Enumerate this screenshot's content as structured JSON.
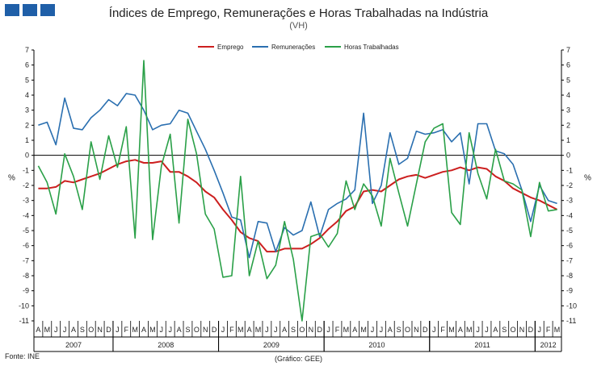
{
  "header": {
    "title": "Índices de Emprego, Remunerações e Horas Trabalhadas na Indústria",
    "subtitle": "(VH)"
  },
  "footer": {
    "source": "Fonte: INE",
    "credit": "(Gráfico: GEE)"
  },
  "colors": {
    "emprego": "#cc1f1f",
    "remuneracoes": "#2a6fb0",
    "horas": "#2aa048",
    "logo": "#1f5fa8"
  },
  "chart_data": {
    "type": "line",
    "title": "Índices de Emprego, Remunerações e Horas Trabalhadas na Indústria",
    "subtitle": "(VH)",
    "ylabel_left": "%",
    "ylabel_right": "%",
    "ylim": [
      -11,
      7
    ],
    "yticks": [
      7,
      6,
      5,
      4,
      3,
      2,
      1,
      0,
      -1,
      -2,
      -3,
      -4,
      -5,
      -6,
      -7,
      -8,
      -9,
      -10,
      -11
    ],
    "grid": false,
    "legend_position": "top-center",
    "x": [
      "A",
      "M",
      "J",
      "J",
      "A",
      "S",
      "O",
      "N",
      "D",
      "J",
      "F",
      "M",
      "A",
      "M",
      "J",
      "J",
      "A",
      "S",
      "O",
      "N",
      "D",
      "J",
      "F",
      "M",
      "A",
      "M",
      "J",
      "J",
      "A",
      "S",
      "O",
      "N",
      "D",
      "J",
      "F",
      "M",
      "A",
      "M",
      "J",
      "J",
      "A",
      "S",
      "O",
      "N",
      "D",
      "J",
      "F",
      "M",
      "A",
      "M",
      "J",
      "J",
      "A",
      "S",
      "O",
      "N",
      "D",
      "J",
      "F",
      "M"
    ],
    "year_groups": [
      {
        "label": "2007",
        "start": 0,
        "count": 9
      },
      {
        "label": "2008",
        "start": 9,
        "count": 12
      },
      {
        "label": "2009",
        "start": 21,
        "count": 12
      },
      {
        "label": "2010",
        "start": 33,
        "count": 12
      },
      {
        "label": "2011",
        "start": 45,
        "count": 12
      },
      {
        "label": "2012",
        "start": 57,
        "count": 3
      }
    ],
    "series": [
      {
        "name": "Emprego",
        "color": "#cc1f1f",
        "values": [
          -2.2,
          -2.2,
          -2.1,
          -1.7,
          -1.8,
          -1.6,
          -1.4,
          -1.2,
          -0.9,
          -0.6,
          -0.4,
          -0.3,
          -0.5,
          -0.5,
          -0.4,
          -1.1,
          -1.1,
          -1.4,
          -1.8,
          -2.4,
          -2.8,
          -3.6,
          -4.3,
          -5.1,
          -5.5,
          -5.7,
          -6.4,
          -6.4,
          -6.2,
          -6.2,
          -6.2,
          -5.9,
          -5.5,
          -4.9,
          -4.4,
          -3.7,
          -3.4,
          -2.4,
          -2.3,
          -2.4,
          -2.0,
          -1.6,
          -1.4,
          -1.3,
          -1.5,
          -1.3,
          -1.1,
          -1.0,
          -0.8,
          -1.0,
          -0.8,
          -0.9,
          -1.4,
          -1.7,
          -2.2,
          -2.5,
          -2.8,
          -3.0,
          -3.3,
          -3.6
        ]
      },
      {
        "name": "Remunerações",
        "color": "#2a6fb0",
        "values": [
          2.0,
          2.2,
          0.7,
          3.8,
          1.8,
          1.7,
          2.5,
          3.0,
          3.7,
          3.3,
          4.1,
          4.0,
          3.0,
          1.7,
          2.0,
          2.1,
          3.0,
          2.8,
          1.6,
          0.4,
          -1.0,
          -2.5,
          -4.1,
          -4.3,
          -6.8,
          -4.4,
          -4.5,
          -6.4,
          -4.8,
          -5.3,
          -5.0,
          -3.1,
          -5.4,
          -3.6,
          -3.2,
          -2.9,
          -2.3,
          2.8,
          -3.2,
          -2.0,
          1.5,
          -0.6,
          -0.2,
          1.6,
          1.4,
          1.5,
          1.7,
          0.9,
          1.5,
          -1.9,
          2.1,
          2.1,
          0.3,
          0.1,
          -0.6,
          -2.3,
          -4.4,
          -2.0,
          -3.0,
          -3.2
        ]
      },
      {
        "name": "Horas Trabalhadas",
        "color": "#2aa048",
        "values": [
          -0.7,
          -1.8,
          -3.9,
          0.1,
          -1.4,
          -3.6,
          0.9,
          -1.6,
          1.3,
          -0.8,
          1.9,
          -5.5,
          6.3,
          -5.6,
          -0.7,
          1.4,
          -4.5,
          2.4,
          0.1,
          -3.9,
          -4.9,
          -8.1,
          -8.0,
          -1.4,
          -8.0,
          -5.7,
          -8.2,
          -7.3,
          -4.4,
          -6.9,
          -11.0,
          -5.4,
          -5.2,
          -6.1,
          -5.2,
          -1.7,
          -3.6,
          -1.9,
          -2.7,
          -4.7,
          -0.2,
          -2.5,
          -4.7,
          -1.9,
          0.9,
          1.8,
          2.1,
          -3.8,
          -4.6,
          1.5,
          -1.2,
          -2.9,
          0.4,
          -1.7,
          -1.9,
          -2.3,
          -5.4,
          -1.8,
          -3.7,
          -3.6
        ]
      }
    ]
  }
}
